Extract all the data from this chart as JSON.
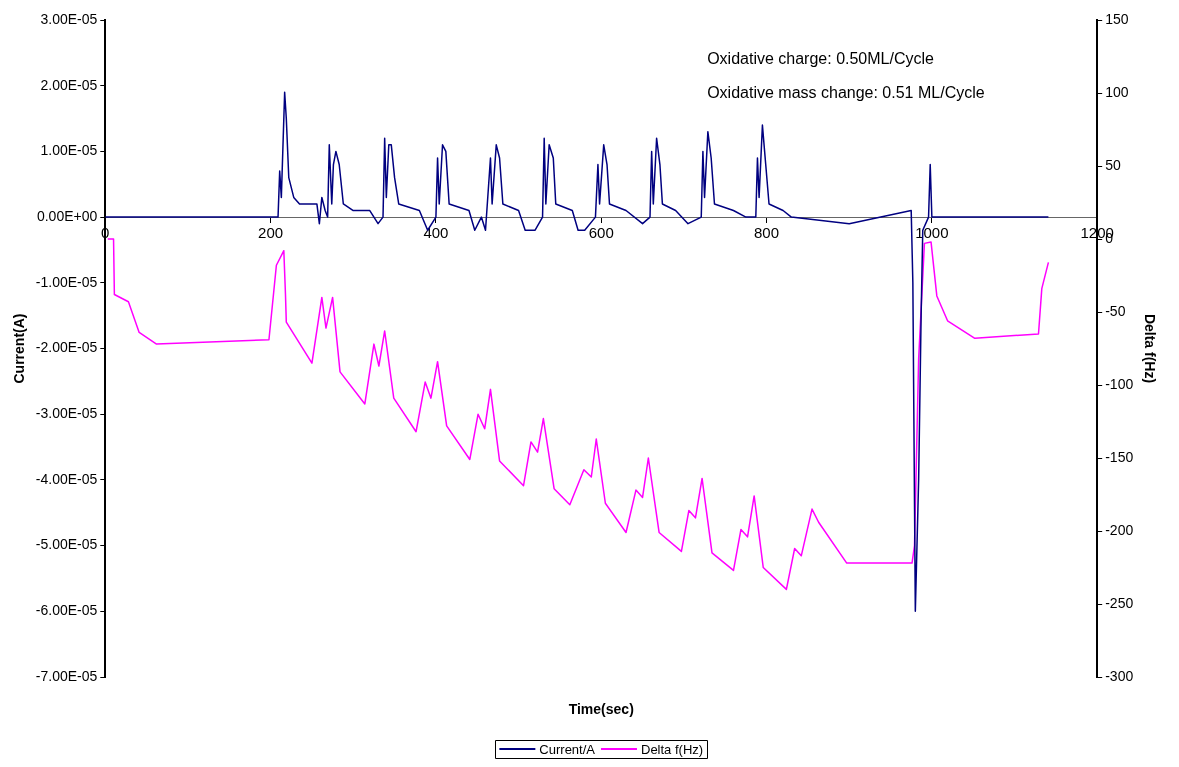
{
  "chart_data": {
    "type": "line",
    "xlabel": "Time(sec)",
    "ylabel": "Current(A)",
    "y2label": "Delta f(Hz)",
    "annotations": [
      "Oxidative charge: 0.50ML/Cycle",
      "Oxidative mass change: 0.51 ML/Cycle"
    ],
    "xlim": [
      0,
      1200
    ],
    "xticks": [
      0,
      200,
      400,
      600,
      800,
      1000,
      1200
    ],
    "ylim": [
      -7e-05,
      3e-05
    ],
    "yticks": [
      {
        "value": -7e-05,
        "label": "-7.00E-05"
      },
      {
        "value": -6e-05,
        "label": "-6.00E-05"
      },
      {
        "value": -5e-05,
        "label": "-5.00E-05"
      },
      {
        "value": -4e-05,
        "label": "-4.00E-05"
      },
      {
        "value": -3e-05,
        "label": "-3.00E-05"
      },
      {
        "value": -2e-05,
        "label": "-2.00E-05"
      },
      {
        "value": -1e-05,
        "label": "-1.00E-05"
      },
      {
        "value": 0,
        "label": "0.00E+00"
      },
      {
        "value": 1e-05,
        "label": "1.00E-05"
      },
      {
        "value": 2e-05,
        "label": "2.00E-05"
      },
      {
        "value": 3e-05,
        "label": "3.00E-05"
      }
    ],
    "y2lim": [
      -300,
      150
    ],
    "y2ticks": [
      -300,
      -250,
      -200,
      -150,
      -100,
      -50,
      0,
      50,
      100,
      150
    ],
    "legend": "bottom",
    "marker": "none",
    "series": [
      {
        "name": "Current/A",
        "color": "#000080",
        "x": [
          0,
          50,
          100,
          150,
          209,
          211,
          213,
          215,
          217,
          219,
          222,
          228,
          235,
          256,
          259,
          262,
          266,
          269,
          271,
          274,
          276,
          279,
          283,
          288,
          300,
          320,
          330,
          336,
          338,
          340,
          343,
          346,
          350,
          355,
          380,
          390,
          400,
          402,
          404,
          408,
          412,
          416,
          440,
          447,
          455,
          460,
          466,
          468,
          473,
          477,
          481,
          500,
          508,
          520,
          529,
          531,
          533,
          537,
          542,
          545,
          565,
          572,
          580,
          593,
          596,
          598,
          603,
          607,
          610,
          630,
          650,
          659,
          661,
          663,
          667,
          671,
          674,
          690,
          705,
          721,
          723,
          725,
          729,
          733,
          737,
          760,
          775,
          787,
          789,
          791,
          795,
          799,
          803,
          820,
          830,
          900,
          975,
          977,
          980,
          984,
          987,
          989,
          996,
          998,
          1000,
          1050,
          1100,
          1141
        ],
        "values": [
          0,
          0,
          0,
          0,
          0,
          7e-06,
          3e-06,
          1.1e-05,
          1.9e-05,
          1.5e-05,
          6e-06,
          3e-06,
          2e-06,
          2e-06,
          -1e-06,
          3e-06,
          1e-06,
          0,
          1.1e-05,
          2e-06,
          8e-06,
          1e-05,
          8e-06,
          2e-06,
          1e-06,
          1e-06,
          -1e-06,
          0,
          1.2e-05,
          3e-06,
          1.1e-05,
          1.1e-05,
          6e-06,
          2e-06,
          1e-06,
          -2e-06,
          0,
          9e-06,
          2e-06,
          1.1e-05,
          1e-05,
          2e-06,
          1e-06,
          -2e-06,
          0,
          -2e-06,
          9e-06,
          2e-06,
          1.1e-05,
          9e-06,
          2e-06,
          1e-06,
          -2e-06,
          -2e-06,
          0,
          1.2e-05,
          2e-06,
          1.1e-05,
          9e-06,
          2e-06,
          1e-06,
          -2e-06,
          -2e-06,
          0,
          8e-06,
          2e-06,
          1.1e-05,
          8e-06,
          2e-06,
          1e-06,
          -1e-06,
          0,
          1e-05,
          2e-06,
          1.2e-05,
          8e-06,
          2e-06,
          1e-06,
          -1e-06,
          0,
          1e-05,
          3e-06,
          1.3e-05,
          9e-06,
          2e-06,
          1e-06,
          0,
          0,
          9e-06,
          3e-06,
          1.4e-05,
          8e-06,
          2e-06,
          1e-06,
          0,
          -1e-06,
          1e-06,
          -1e-05,
          -6e-05,
          -4e-05,
          -1.5e-05,
          -2e-06,
          0,
          8e-06,
          0,
          0,
          0,
          0
        ]
      },
      {
        "name": "Delta f(Hz)",
        "color": "#ff00ff",
        "axis": "y2",
        "x": [
          3,
          10,
          11,
          28,
          41,
          62,
          198,
          207,
          216,
          218,
          219,
          250,
          262,
          267,
          275,
          284,
          314,
          325,
          331,
          338,
          349,
          376,
          387,
          394,
          402,
          413,
          441,
          451,
          459,
          466,
          477,
          506,
          515,
          523,
          530,
          543,
          562,
          579,
          588,
          594,
          605,
          630,
          642,
          650,
          657,
          670,
          697,
          706,
          714,
          722,
          734,
          760,
          769,
          777,
          785,
          796,
          824,
          834,
          842,
          855,
          863,
          897,
          976,
          979,
          984,
          991,
          999,
          1006,
          1019,
          1052,
          1129,
          1133,
          1141
        ],
        "values": [
          0,
          0,
          -38,
          -43,
          -64,
          -72,
          -69,
          -18,
          -8,
          -38,
          -57,
          -85,
          -40,
          -61,
          -40,
          -91,
          -113,
          -72,
          -87,
          -63,
          -109,
          -132,
          -98,
          -109,
          -84,
          -128,
          -151,
          -120,
          -130,
          -103,
          -152,
          -169,
          -139,
          -146,
          -123,
          -171,
          -182,
          -158,
          -163,
          -137,
          -181,
          -201,
          -172,
          -177,
          -150,
          -201,
          -214,
          -186,
          -191,
          -164,
          -215,
          -227,
          -199,
          -204,
          -176,
          -225,
          -240,
          -212,
          -217,
          -185,
          -194,
          -222,
          -222,
          -210,
          -82,
          -3,
          -2,
          -39,
          -56,
          -68,
          -65,
          -34,
          -16
        ]
      }
    ]
  }
}
